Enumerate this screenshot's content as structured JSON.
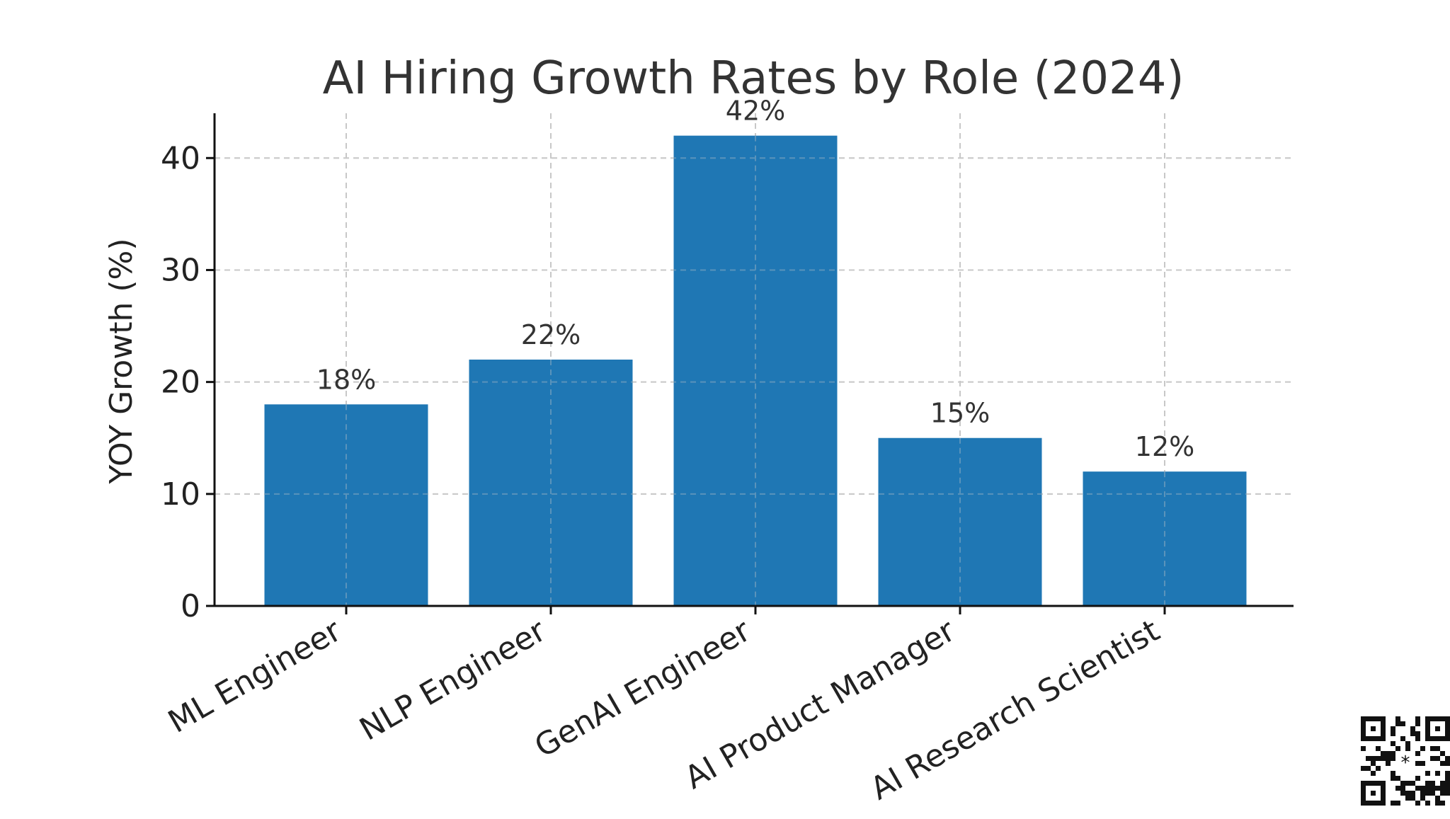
{
  "chart_data": {
    "type": "bar",
    "title": "AI Hiring Growth Rates by Role (2024)",
    "xlabel": "",
    "ylabel": "YOY Growth (%)",
    "categories": [
      "ML Engineer",
      "NLP Engineer",
      "GenAI Engineer",
      "AI Product Manager",
      "AI Research Scientist"
    ],
    "values": [
      18,
      22,
      42,
      15,
      12
    ],
    "data_labels": [
      "18%",
      "22%",
      "42%",
      "15%",
      "12%"
    ],
    "ylim": [
      0,
      44
    ],
    "yticks": [
      0,
      10,
      20,
      30,
      40
    ],
    "grid": true,
    "bar_color": "#1f77b4"
  }
}
